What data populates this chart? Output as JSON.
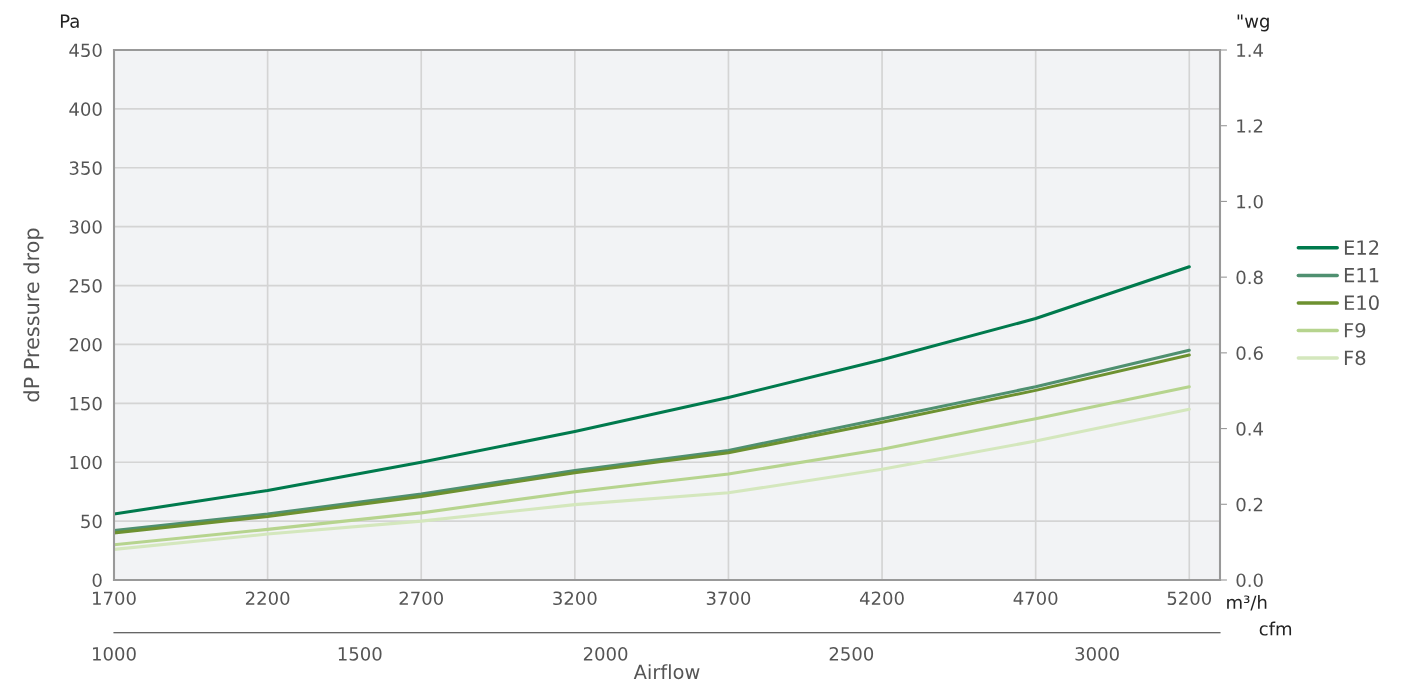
{
  "chart_data": {
    "type": "line",
    "ylabel": "dP Pressure drop",
    "xlabel": "Airflow",
    "y2label": "\"wg",
    "x2label": "cfm",
    "annotations": [
      "Pa",
      "m³/h"
    ],
    "x": [
      1700,
      2200,
      2700,
      3200,
      3700,
      4200,
      4700,
      5200
    ],
    "series": [
      {
        "name": "E12",
        "color": "#007a4d",
        "values": [
          56,
          76,
          100,
          126,
          155,
          187,
          222,
          266
        ]
      },
      {
        "name": "E11",
        "color": "#4f9070",
        "values": [
          42,
          56,
          73,
          93,
          110,
          137,
          164,
          195
        ]
      },
      {
        "name": "E10",
        "color": "#6d9130",
        "values": [
          40,
          54,
          71,
          91,
          108,
          134,
          161,
          191
        ]
      },
      {
        "name": "F9",
        "color": "#b6d48e",
        "values": [
          30,
          43,
          57,
          75,
          90,
          111,
          137,
          164
        ]
      },
      {
        "name": "F8",
        "color": "#d4e7bd",
        "values": [
          26,
          39,
          50,
          64,
          74,
          94,
          118,
          145
        ]
      }
    ],
    "xlim": [
      1700,
      5300
    ],
    "xticks": [
      1700,
      2200,
      2700,
      3200,
      3700,
      4200,
      4700,
      5200
    ],
    "ylim": [
      0,
      450
    ],
    "yticks": [
      0,
      50,
      100,
      150,
      200,
      250,
      300,
      350,
      400,
      450
    ],
    "y2lim": [
      0,
      1.4
    ],
    "y2ticks": [
      {
        "value": 0,
        "label": "0.0"
      },
      0.2,
      0.4,
      0.6,
      0.8,
      {
        "value": 1,
        "label": "1.0"
      },
      1.2,
      1.4
    ],
    "x2lim": [
      1000,
      3250
    ],
    "x2ticks": [
      1000,
      1500,
      2000,
      2500,
      3000
    ],
    "grid": true,
    "legend": "right",
    "marker": "none",
    "line_style": "solid"
  }
}
